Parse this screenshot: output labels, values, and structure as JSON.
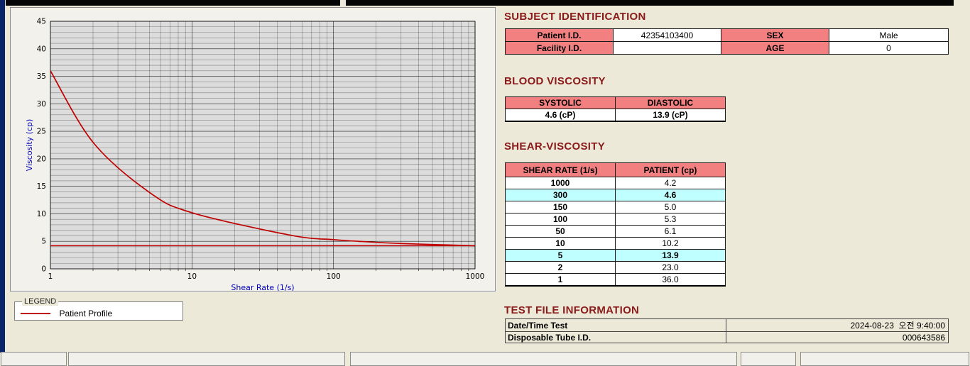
{
  "colors": {
    "header_pink": "#F38080",
    "highlight_cyan": "#BFFFFF",
    "title_maroon": "#8B1A1A",
    "axis_blue": "#0000BB",
    "curve_red": "#C00000"
  },
  "chart": {
    "legend_title": "LEGEND",
    "legend_series": "Patient Profile",
    "y_ticks": [
      0,
      5,
      10,
      15,
      20,
      25,
      30,
      35,
      40,
      45
    ],
    "x_ticks": [
      1,
      10,
      100,
      1000
    ]
  },
  "chart_data": {
    "type": "line",
    "title": "",
    "xlabel": "Shear Rate (1/s)",
    "ylabel": "Viscosity (cp)",
    "x_scale": "log",
    "xlim": [
      1,
      1000
    ],
    "ylim": [
      0,
      45
    ],
    "grid": true,
    "legend_position": "below",
    "x": [
      1,
      2,
      5,
      10,
      50,
      100,
      150,
      300,
      1000
    ],
    "series": [
      {
        "name": "Patient Profile",
        "values": [
          36.0,
          23.0,
          13.9,
          10.2,
          6.1,
          5.3,
          5.0,
          4.6,
          4.2
        ]
      }
    ],
    "baseline": 4.2
  },
  "sections": {
    "subject": {
      "title": "SUBJECT IDENTIFICATION",
      "rows": [
        {
          "label1": "Patient I.D.",
          "value1": "42354103400",
          "label2": "SEX",
          "value2": "Male"
        },
        {
          "label1": "Facility I.D.",
          "value1": "",
          "label2": "AGE",
          "value2": "0"
        }
      ]
    },
    "blood": {
      "title": "BLOOD VISCOSITY",
      "headers": [
        "SYSTOLIC",
        "DIASTOLIC"
      ],
      "values": [
        "4.6 (cP)",
        "13.9 (cP)"
      ]
    },
    "shear": {
      "title": "SHEAR-VISCOSITY",
      "headers": [
        "SHEAR RATE (1/s)",
        "PATIENT (cp)"
      ],
      "rows": [
        {
          "rate": "1000",
          "value": "4.2",
          "highlight": false
        },
        {
          "rate": "300",
          "value": "4.6",
          "highlight": true
        },
        {
          "rate": "150",
          "value": "5.0",
          "highlight": false
        },
        {
          "rate": "100",
          "value": "5.3",
          "highlight": false
        },
        {
          "rate": "50",
          "value": "6.1",
          "highlight": false
        },
        {
          "rate": "10",
          "value": "10.2",
          "highlight": false
        },
        {
          "rate": "5",
          "value": "13.9",
          "highlight": true
        },
        {
          "rate": "2",
          "value": "23.0",
          "highlight": false
        },
        {
          "rate": "1",
          "value": "36.0",
          "highlight": false
        }
      ]
    },
    "testfile": {
      "title": "TEST FILE INFORMATION",
      "rows": [
        {
          "label": "Date/Time Test",
          "value": "2024-08-23  오전 9:40:00"
        },
        {
          "label": "Disposable Tube I.D.",
          "value": "000643586"
        }
      ]
    }
  }
}
